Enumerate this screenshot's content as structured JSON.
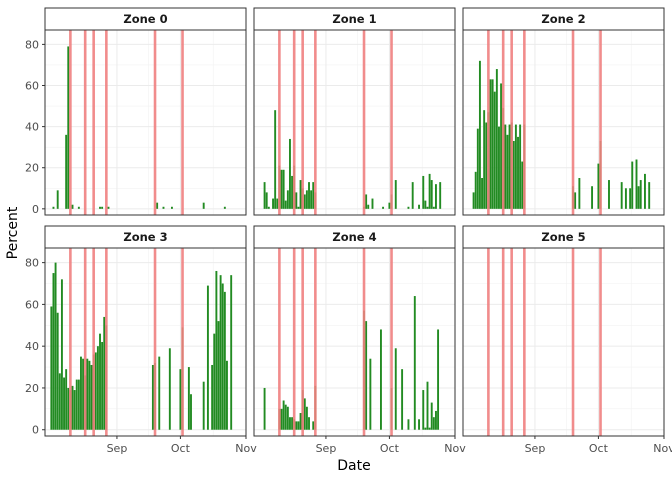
{
  "chart_data": {
    "type": "bar",
    "xlabel": "Date",
    "ylabel": "Percent",
    "ylim": [
      -3,
      87
    ],
    "yticks": [
      0,
      20,
      40,
      60,
      80
    ],
    "xlim": [
      "2023-07-29",
      "2023-11-01"
    ],
    "xticks": [
      {
        "date": "2023-09-01",
        "label": "Sep"
      },
      {
        "date": "2023-10-01",
        "label": "Oct"
      },
      {
        "date": "2023-11-01",
        "label": "Nov"
      }
    ],
    "layout": "facet grid, 3 columns x 2 rows, x-axis ticks only on bottom row",
    "grid": true,
    "bar_color": "#228B22",
    "vline_color": "#F08080",
    "vlines": [
      "2023-08-10",
      "2023-08-17",
      "2023-08-21",
      "2023-08-27",
      "2023-09-19",
      "2023-10-02"
    ],
    "panels": [
      {
        "title": "Zone 0",
        "bars": [
          [
            "2023-08-02",
            1
          ],
          [
            "2023-08-04",
            9
          ],
          [
            "2023-08-08",
            36
          ],
          [
            "2023-08-09",
            79
          ],
          [
            "2023-08-11",
            2
          ],
          [
            "2023-08-14",
            1
          ],
          [
            "2023-08-24",
            1
          ],
          [
            "2023-08-25",
            1
          ],
          [
            "2023-08-28",
            1
          ],
          [
            "2023-09-20",
            3
          ],
          [
            "2023-09-23",
            1
          ],
          [
            "2023-09-27",
            1
          ],
          [
            "2023-10-12",
            3
          ],
          [
            "2023-10-22",
            1
          ]
        ]
      },
      {
        "title": "Zone 1",
        "bars": [
          [
            "2023-08-03",
            13
          ],
          [
            "2023-08-04",
            8
          ],
          [
            "2023-08-05",
            1
          ],
          [
            "2023-08-07",
            5
          ],
          [
            "2023-08-08",
            48
          ],
          [
            "2023-08-09",
            5
          ],
          [
            "2023-08-10",
            21
          ],
          [
            "2023-08-11",
            19
          ],
          [
            "2023-08-12",
            19
          ],
          [
            "2023-08-13",
            4
          ],
          [
            "2023-08-14",
            9
          ],
          [
            "2023-08-15",
            34
          ],
          [
            "2023-08-16",
            16
          ],
          [
            "2023-08-17",
            21
          ],
          [
            "2023-08-18",
            8
          ],
          [
            "2023-08-19",
            1
          ],
          [
            "2023-08-20",
            14
          ],
          [
            "2023-08-21",
            10
          ],
          [
            "2023-08-22",
            7
          ],
          [
            "2023-08-23",
            9
          ],
          [
            "2023-08-24",
            13
          ],
          [
            "2023-08-25",
            9
          ],
          [
            "2023-08-26",
            13
          ],
          [
            "2023-08-27",
            8
          ],
          [
            "2023-09-19",
            1
          ],
          [
            "2023-09-20",
            7
          ],
          [
            "2023-09-21",
            2
          ],
          [
            "2023-09-23",
            5
          ],
          [
            "2023-09-28",
            1
          ],
          [
            "2023-10-01",
            3
          ],
          [
            "2023-10-02",
            7
          ],
          [
            "2023-10-04",
            14
          ],
          [
            "2023-10-10",
            1
          ],
          [
            "2023-10-12",
            13
          ],
          [
            "2023-10-15",
            2
          ],
          [
            "2023-10-17",
            16
          ],
          [
            "2023-10-18",
            4
          ],
          [
            "2023-10-19",
            1
          ],
          [
            "2023-10-20",
            17
          ],
          [
            "2023-10-21",
            14
          ],
          [
            "2023-10-22",
            1
          ],
          [
            "2023-10-23",
            12
          ],
          [
            "2023-10-25",
            13
          ]
        ]
      },
      {
        "title": "Zone 2",
        "bars": [
          [
            "2023-08-03",
            8
          ],
          [
            "2023-08-04",
            18
          ],
          [
            "2023-08-05",
            39
          ],
          [
            "2023-08-06",
            72
          ],
          [
            "2023-08-07",
            15
          ],
          [
            "2023-08-08",
            48
          ],
          [
            "2023-08-09",
            42
          ],
          [
            "2023-08-10",
            47
          ],
          [
            "2023-08-11",
            63
          ],
          [
            "2023-08-12",
            63
          ],
          [
            "2023-08-13",
            57
          ],
          [
            "2023-08-14",
            68
          ],
          [
            "2023-08-15",
            40
          ],
          [
            "2023-08-16",
            61
          ],
          [
            "2023-08-17",
            49
          ],
          [
            "2023-08-18",
            41
          ],
          [
            "2023-08-19",
            36
          ],
          [
            "2023-08-20",
            41
          ],
          [
            "2023-08-21",
            42
          ],
          [
            "2023-08-22",
            33
          ],
          [
            "2023-08-23",
            41
          ],
          [
            "2023-08-24",
            35
          ],
          [
            "2023-08-25",
            41
          ],
          [
            "2023-08-26",
            23
          ],
          [
            "2023-08-27",
            41
          ],
          [
            "2023-09-19",
            11
          ],
          [
            "2023-09-20",
            8
          ],
          [
            "2023-09-22",
            15
          ],
          [
            "2023-09-28",
            11
          ],
          [
            "2023-10-01",
            22
          ],
          [
            "2023-10-02",
            33
          ],
          [
            "2023-10-06",
            14
          ],
          [
            "2023-10-12",
            13
          ],
          [
            "2023-10-14",
            10
          ],
          [
            "2023-10-16",
            10
          ],
          [
            "2023-10-17",
            23
          ],
          [
            "2023-10-19",
            24
          ],
          [
            "2023-10-20",
            11
          ],
          [
            "2023-10-21",
            14
          ],
          [
            "2023-10-23",
            17
          ],
          [
            "2023-10-25",
            13
          ]
        ]
      },
      {
        "title": "Zone 3",
        "bars": [
          [
            "2023-08-01",
            59
          ],
          [
            "2023-08-02",
            75
          ],
          [
            "2023-08-03",
            80
          ],
          [
            "2023-08-04",
            56
          ],
          [
            "2023-08-05",
            27
          ],
          [
            "2023-08-06",
            72
          ],
          [
            "2023-08-07",
            25
          ],
          [
            "2023-08-08",
            29
          ],
          [
            "2023-08-09",
            20
          ],
          [
            "2023-08-10",
            19
          ],
          [
            "2023-08-11",
            21
          ],
          [
            "2023-08-12",
            19
          ],
          [
            "2023-08-13",
            24
          ],
          [
            "2023-08-14",
            24
          ],
          [
            "2023-08-15",
            35
          ],
          [
            "2023-08-16",
            34
          ],
          [
            "2023-08-17",
            26
          ],
          [
            "2023-08-18",
            34
          ],
          [
            "2023-08-19",
            33
          ],
          [
            "2023-08-20",
            31
          ],
          [
            "2023-08-21",
            36
          ],
          [
            "2023-08-22",
            37
          ],
          [
            "2023-08-23",
            40
          ],
          [
            "2023-08-24",
            46
          ],
          [
            "2023-08-25",
            42
          ],
          [
            "2023-08-26",
            54
          ],
          [
            "2023-08-27",
            50
          ],
          [
            "2023-09-18",
            31
          ],
          [
            "2023-09-19",
            32
          ],
          [
            "2023-09-21",
            35
          ],
          [
            "2023-09-26",
            39
          ],
          [
            "2023-10-01",
            29
          ],
          [
            "2023-10-02",
            49
          ],
          [
            "2023-10-05",
            30
          ],
          [
            "2023-10-06",
            17
          ],
          [
            "2023-10-12",
            23
          ],
          [
            "2023-10-14",
            69
          ],
          [
            "2023-10-16",
            31
          ],
          [
            "2023-10-17",
            46
          ],
          [
            "2023-10-18",
            76
          ],
          [
            "2023-10-19",
            52
          ],
          [
            "2023-10-20",
            74
          ],
          [
            "2023-10-21",
            70
          ],
          [
            "2023-10-22",
            66
          ],
          [
            "2023-10-23",
            33
          ],
          [
            "2023-10-25",
            74
          ]
        ]
      },
      {
        "title": "Zone 4",
        "bars": [
          [
            "2023-08-03",
            20
          ],
          [
            "2023-08-10",
            10
          ],
          [
            "2023-08-11",
            10
          ],
          [
            "2023-08-12",
            14
          ],
          [
            "2023-08-13",
            12
          ],
          [
            "2023-08-14",
            11
          ],
          [
            "2023-08-15",
            6
          ],
          [
            "2023-08-16",
            6
          ],
          [
            "2023-08-17",
            5
          ],
          [
            "2023-08-18",
            4
          ],
          [
            "2023-08-19",
            4
          ],
          [
            "2023-08-20",
            8
          ],
          [
            "2023-08-21",
            19
          ],
          [
            "2023-08-22",
            15
          ],
          [
            "2023-08-23",
            11
          ],
          [
            "2023-08-24",
            6
          ],
          [
            "2023-08-26",
            4
          ],
          [
            "2023-08-27",
            21
          ],
          [
            "2023-09-19",
            57
          ],
          [
            "2023-09-20",
            52
          ],
          [
            "2023-09-22",
            34
          ],
          [
            "2023-09-27",
            48
          ],
          [
            "2023-10-02",
            20
          ],
          [
            "2023-10-04",
            39
          ],
          [
            "2023-10-07",
            29
          ],
          [
            "2023-10-10",
            5
          ],
          [
            "2023-10-13",
            64
          ],
          [
            "2023-10-15",
            5
          ],
          [
            "2023-10-17",
            19
          ],
          [
            "2023-10-18",
            1
          ],
          [
            "2023-10-19",
            23
          ],
          [
            "2023-10-20",
            1
          ],
          [
            "2023-10-21",
            13
          ],
          [
            "2023-10-22",
            6
          ],
          [
            "2023-10-23",
            9
          ],
          [
            "2023-10-24",
            48
          ]
        ]
      },
      {
        "title": "Zone 5",
        "bars": []
      }
    ]
  }
}
